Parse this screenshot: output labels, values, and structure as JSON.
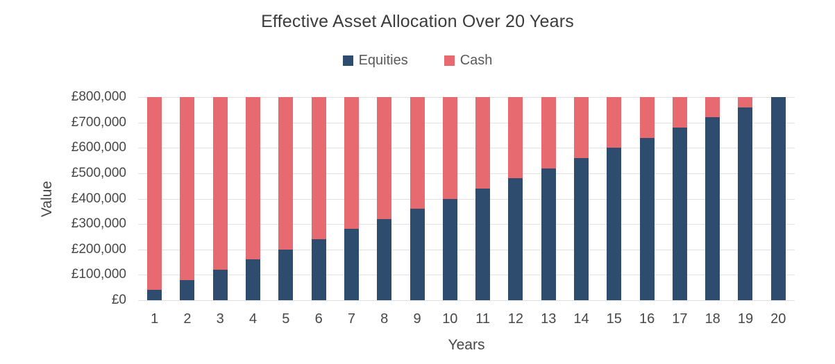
{
  "title": "Effective Asset Allocation Over 20 Years",
  "legend": {
    "items": [
      {
        "label": "Equities",
        "color": "#2e4d6e"
      },
      {
        "label": "Cash",
        "color": "#e76a70"
      }
    ]
  },
  "colors": {
    "equities": "#2e4d6e",
    "cash": "#e76a70",
    "gridline": "#e0e0e0",
    "title_text": "#3c3c3c",
    "axis_text": "#474747",
    "legend_text": "#595959",
    "background": "#ffffff"
  },
  "chart_data": {
    "type": "bar",
    "stacked": true,
    "title": "Effective Asset Allocation Over 20 Years",
    "xlabel": "Years",
    "ylabel": "Value",
    "categories": [
      "1",
      "2",
      "3",
      "4",
      "5",
      "6",
      "7",
      "8",
      "9",
      "10",
      "11",
      "12",
      "13",
      "14",
      "15",
      "16",
      "17",
      "18",
      "19",
      "20"
    ],
    "series": [
      {
        "name": "Equities",
        "color": "#2e4d6e",
        "values": [
          40000,
          80000,
          120000,
          160000,
          200000,
          240000,
          280000,
          320000,
          360000,
          400000,
          440000,
          480000,
          520000,
          560000,
          600000,
          640000,
          680000,
          720000,
          760000,
          800000
        ]
      },
      {
        "name": "Cash",
        "color": "#e76a70",
        "values": [
          760000,
          720000,
          680000,
          640000,
          600000,
          560000,
          520000,
          480000,
          440000,
          400000,
          360000,
          320000,
          280000,
          240000,
          200000,
          160000,
          120000,
          80000,
          40000,
          0
        ]
      }
    ],
    "bar_total": 800000,
    "ylim": [
      0,
      800000
    ],
    "ytick_step": 100000,
    "ytick_labels": [
      "£0",
      "£100,000",
      "£200,000",
      "£300,000",
      "£400,000",
      "£500,000",
      "£600,000",
      "£700,000",
      "£800,000"
    ],
    "grid": true,
    "legend_position": "top"
  }
}
